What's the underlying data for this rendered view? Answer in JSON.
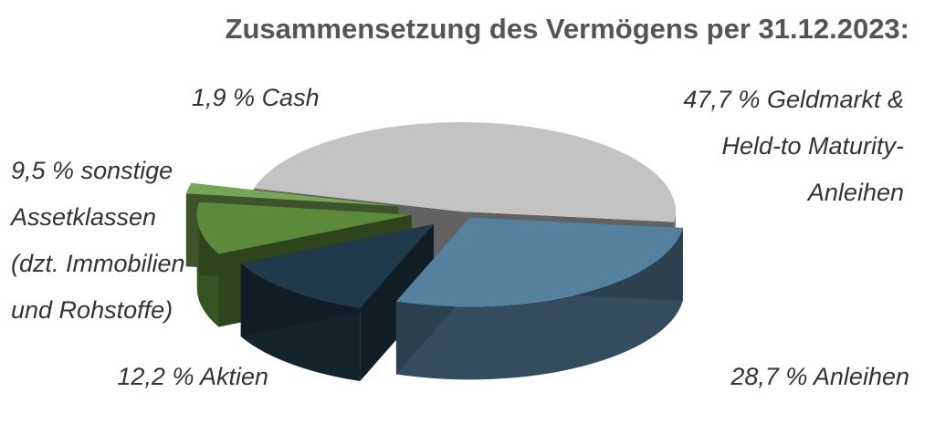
{
  "chart_data": {
    "type": "pie3d",
    "title": "Zusammensetzung des Vermögens per 31.12.2023:",
    "categories": [
      "Geldmarkt &\nHeld-to Maturity-\nAnleihen",
      "Anleihen",
      "Aktien",
      "sonstige\nAssetklassen\n(dzt. Immobilien\nund Rohstoffe)",
      "Cash"
    ],
    "values": [
      47.7,
      28.7,
      12.2,
      9.5,
      1.9
    ],
    "value_labels": [
      "47,7 %",
      "28,7 %",
      "12,2 %",
      "9,5 %",
      "1,9 %"
    ],
    "colors": [
      "#c3c3c3",
      "#55819f",
      "#1f3a4a",
      "#5a8a3a",
      "#78a656"
    ]
  }
}
